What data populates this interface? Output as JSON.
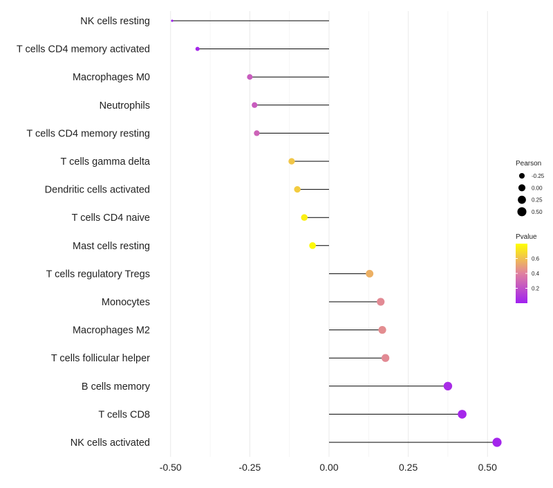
{
  "chart_data": {
    "type": "lollipop",
    "title": "",
    "xlabel": "",
    "ylabel": "",
    "xlim": [
      -0.53,
      0.53
    ],
    "x_ticks": [
      -0.5,
      -0.25,
      0.0,
      0.25,
      0.5
    ],
    "x_tick_labels": [
      "-0.50",
      "-0.25",
      "0.00",
      "0.25",
      "0.50"
    ],
    "grid": true,
    "baseline": 0.0,
    "categories": [
      "NK cells resting",
      "T cells CD4 memory activated",
      "Macrophages M0",
      "Neutrophils",
      "T cells CD4 memory resting",
      "T cells gamma delta",
      "Dendritic cells activated",
      "T cells CD4 naive",
      "Mast cells resting",
      "T cells regulatory  Tregs ",
      "Monocytes",
      "Macrophages M2",
      "T cells follicular helper",
      "B cells memory",
      "T cells CD8",
      "NK cells activated"
    ],
    "pearson": [
      -0.495,
      -0.415,
      -0.25,
      -0.235,
      -0.228,
      -0.118,
      -0.1,
      -0.078,
      -0.052,
      0.128,
      0.163,
      0.168,
      0.178,
      0.375,
      0.42,
      0.53
    ],
    "pvalue": [
      0.0,
      0.03,
      0.25,
      0.25,
      0.28,
      0.62,
      0.64,
      0.75,
      0.78,
      0.55,
      0.43,
      0.44,
      0.43,
      0.05,
      0.03,
      0.02
    ],
    "legend": {
      "position": "right",
      "size_legend": {
        "title": "Pearson",
        "breaks": [
          -0.25,
          0.0,
          0.25,
          0.5
        ],
        "labels": [
          "-0.25",
          "0.00",
          "0.25",
          "0.50"
        ]
      },
      "color_legend": {
        "title": "Pvalue",
        "range": [
          0.0,
          0.8
        ],
        "ticks": [
          0.2,
          0.4,
          0.6
        ],
        "labels": [
          "0.2",
          "0.4",
          "0.6"
        ],
        "colors": [
          "#a020f0",
          "#ffff00"
        ]
      }
    }
  }
}
